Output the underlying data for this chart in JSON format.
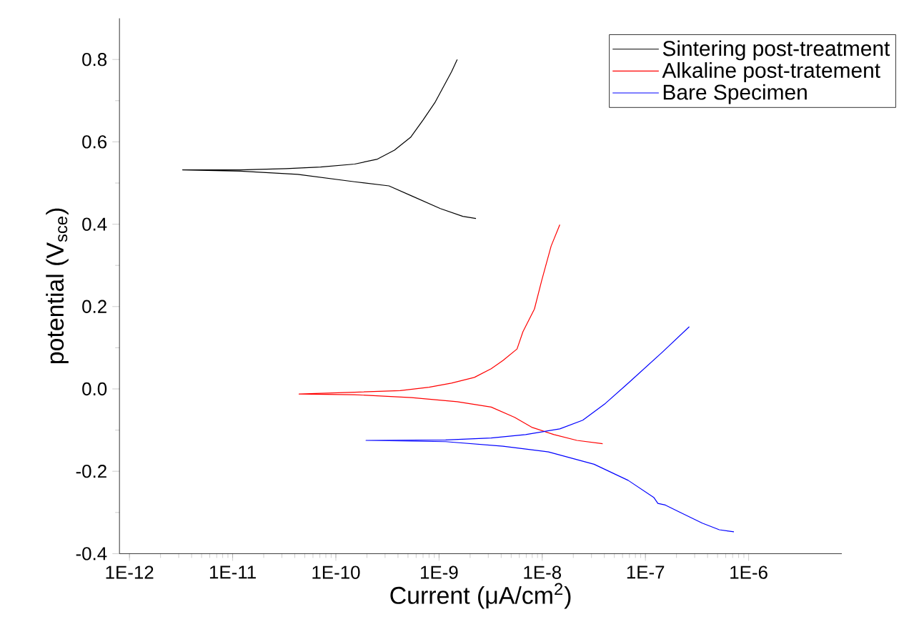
{
  "chart_data": {
    "type": "line",
    "xlabel": "Current (μA/cm$^{2}$)",
    "ylabel": "potential (V$_{sce}$)",
    "log": "x",
    "legend": "top right",
    "xlim": [
      8e-13,
      8e-06
    ],
    "ylim": [
      -0.4,
      0.9
    ],
    "xticks": [
      {
        "value": 1e-12,
        "label": "1E-12"
      },
      {
        "value": 1e-11,
        "label": "1E-11"
      },
      {
        "value": 1e-10,
        "label": "1E-10"
      },
      {
        "value": 1e-09,
        "label": "1E-9"
      },
      {
        "value": 1e-08,
        "label": "1E-8"
      },
      {
        "value": 1e-07,
        "label": "1E-7"
      },
      {
        "value": 1e-06,
        "label": "1E-6"
      }
    ],
    "yticks": [
      -0.4,
      -0.2,
      {
        "value": 0,
        "label": "0.0"
      },
      0.2,
      0.4,
      0.6,
      0.8
    ],
    "series": [
      {
        "name": "Sintering post-treatment",
        "color": "#000000",
        "x": [
          1.5e-09,
          1.32e-09,
          9.1e-10,
          7e-10,
          5.3e-10,
          3.7e-10,
          2.53e-10,
          1.52e-10,
          7.1e-11,
          3.3e-11,
          1.19e-11,
          3.27e-12,
          1.19e-11,
          4.27e-11,
          1.52e-10,
          3.27e-10,
          5.4e-10,
          1.03e-09,
          1.7e-09,
          2.28e-09
        ],
        "values": [
          0.8,
          0.77,
          0.695,
          0.653,
          0.611,
          0.58,
          0.558,
          0.546,
          0.539,
          0.535,
          0.532,
          0.532,
          0.529,
          0.521,
          0.503,
          0.493,
          0.469,
          0.438,
          0.419,
          0.414
        ]
      },
      {
        "name": "Alkaline post-tratement",
        "color": "#ff0000",
        "x": [
          1.48e-08,
          1.22e-08,
          9.9e-09,
          8.4e-09,
          6.5e-09,
          5.7e-09,
          4.16e-09,
          3.2e-09,
          2.2e-09,
          1.32e-09,
          8e-10,
          4.2e-10,
          1.52e-10,
          4.4e-11,
          1.52e-10,
          5.4e-10,
          1.5e-09,
          3.2e-09,
          5.4e-09,
          7.9e-09,
          1.3e-08,
          2.17e-08,
          3.85e-08
        ],
        "values": [
          0.399,
          0.347,
          0.264,
          0.194,
          0.139,
          0.097,
          0.069,
          0.049,
          0.028,
          0.014,
          0.004,
          -0.004,
          -0.008,
          -0.0125,
          -0.014,
          -0.021,
          -0.031,
          -0.044,
          -0.069,
          -0.093,
          -0.111,
          -0.125,
          -0.133
        ]
      },
      {
        "name": "Bare Specimen",
        "color": "#0000ff",
        "x": [
          2.66e-07,
          1.47e-07,
          6.8e-08,
          4.1e-08,
          2.47e-08,
          1.48e-08,
          6.9e-09,
          3.2e-09,
          1.16e-09,
          1.96e-10,
          1.16e-09,
          4.16e-09,
          1.15e-08,
          3.18e-08,
          6.8e-08,
          1.21e-07,
          1.32e-07,
          1.56e-07,
          2.14e-07,
          3.56e-07,
          5.2e-07,
          7.2e-07
        ],
        "values": [
          0.151,
          0.09,
          0.014,
          -0.035,
          -0.076,
          -0.097,
          -0.111,
          -0.119,
          -0.124,
          -0.125,
          -0.128,
          -0.139,
          -0.153,
          -0.183,
          -0.222,
          -0.264,
          -0.278,
          -0.282,
          -0.299,
          -0.326,
          -0.342,
          -0.347
        ]
      }
    ]
  }
}
